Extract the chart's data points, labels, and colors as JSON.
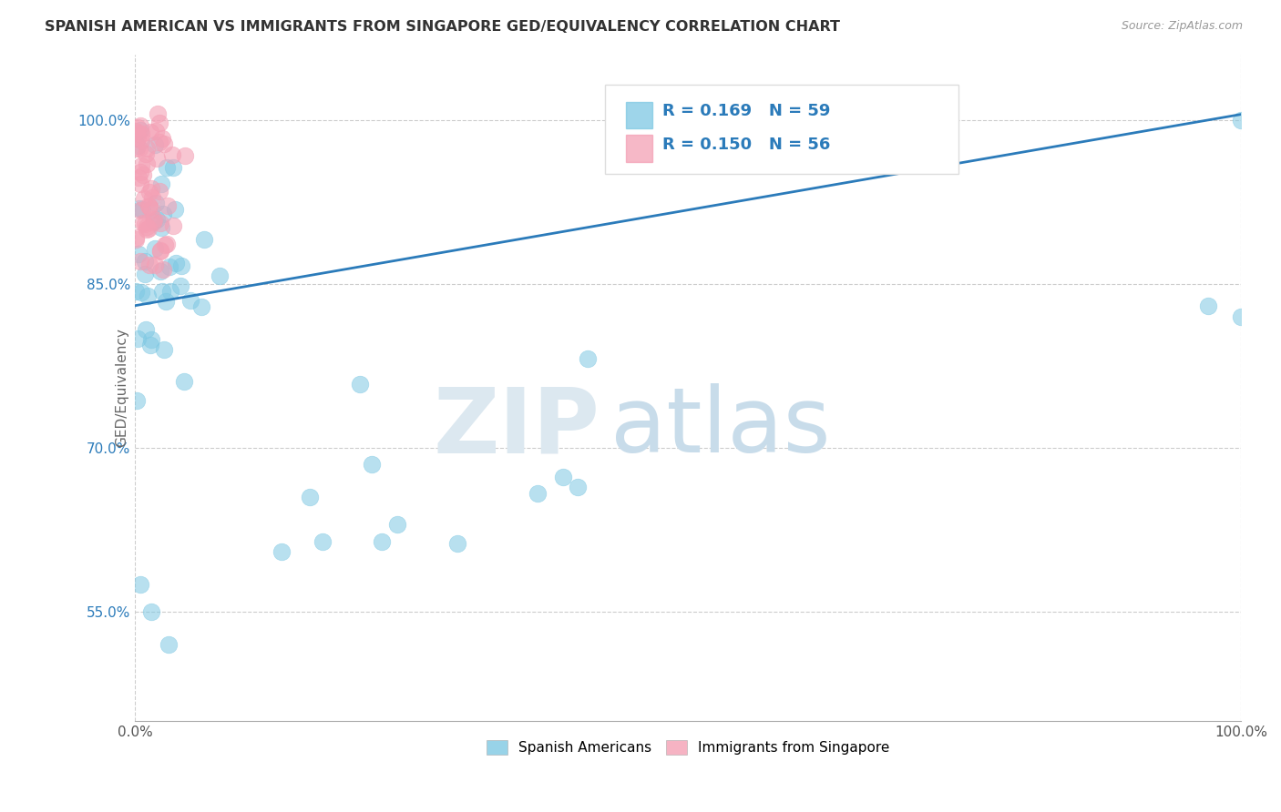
{
  "title": "SPANISH AMERICAN VS IMMIGRANTS FROM SINGAPORE GED/EQUIVALENCY CORRELATION CHART",
  "source": "Source: ZipAtlas.com",
  "ylabel": "GED/Equivalency",
  "xlim": [
    0,
    100
  ],
  "ylim": [
    45,
    106
  ],
  "xtick_labels": [
    "0.0%",
    "100.0%"
  ],
  "xtick_positions": [
    0,
    100
  ],
  "ytick_labels": [
    "55.0%",
    "70.0%",
    "85.0%",
    "100.0%"
  ],
  "ytick_positions": [
    55,
    70,
    85,
    100
  ],
  "blue_R": "0.169",
  "blue_N": "59",
  "pink_R": "0.150",
  "pink_N": "56",
  "blue_color": "#7ec8e3",
  "pink_color": "#f4a0b5",
  "line_color": "#2b7bba",
  "legend_label_blue": "Spanish Americans",
  "legend_label_pink": "Immigrants from Singapore",
  "regression_line_x": [
    0,
    100
  ],
  "regression_line_y": [
    83.0,
    100.5
  ]
}
